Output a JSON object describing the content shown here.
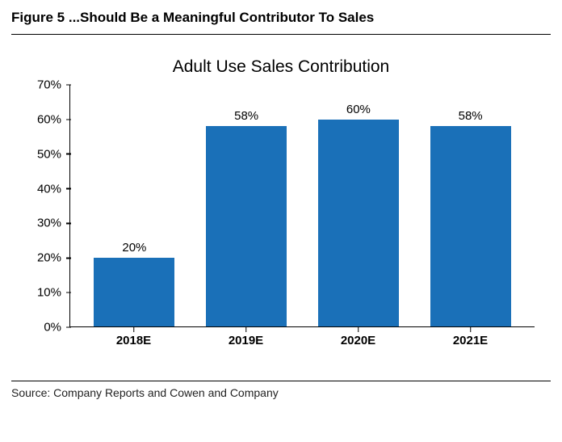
{
  "figure_title": "Figure 5 ...Should Be a Meaningful Contributor To Sales",
  "source_line": "Source: Company Reports and Cowen and Company",
  "chart": {
    "type": "bar",
    "title": "Adult Use Sales Contribution",
    "title_fontsize": 21,
    "categories": [
      "2018E",
      "2019E",
      "2020E",
      "2021E"
    ],
    "values": [
      20,
      58,
      60,
      58
    ],
    "value_labels": [
      "20%",
      "58%",
      "60%",
      "58%"
    ],
    "bar_color": "#1a70b8",
    "ylim": [
      0,
      70
    ],
    "ytick_step": 10,
    "ytick_suffix": "%",
    "axis_color": "#000000",
    "background_color": "#ffffff",
    "label_fontsize": 15,
    "category_fontweight": "700",
    "bar_width_pct": 72
  }
}
